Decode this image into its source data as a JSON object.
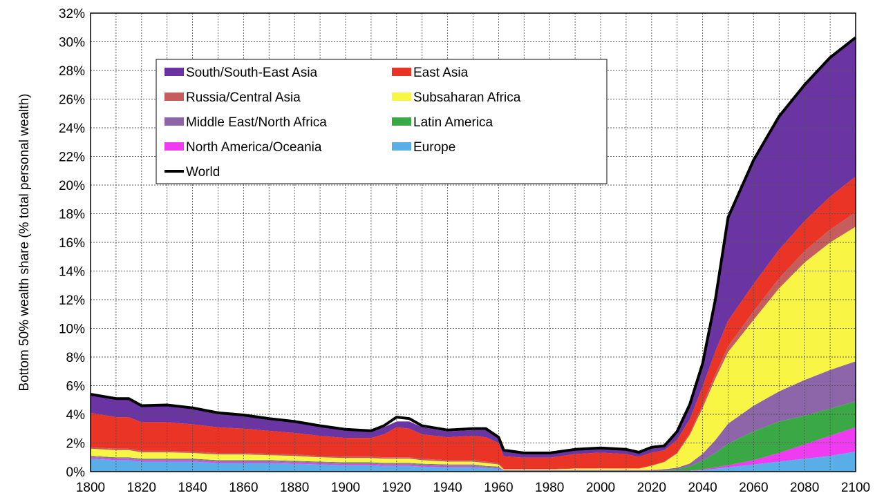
{
  "chart_data": {
    "type": "area",
    "title": "",
    "xlabel": "",
    "ylabel": "Bottom 50% wealth share (% total personal wealth)",
    "xlim": [
      1800,
      2100
    ],
    "ylim": [
      0,
      32
    ],
    "x_ticks": [
      "1800",
      "1820",
      "1840",
      "1860",
      "1880",
      "1900",
      "1920",
      "1940",
      "1960",
      "1980",
      "2000",
      "2020",
      "2040",
      "2060",
      "2080",
      "2100"
    ],
    "y_ticks": [
      "0%",
      "2%",
      "4%",
      "6%",
      "8%",
      "10%",
      "12%",
      "14%",
      "16%",
      "18%",
      "20%",
      "22%",
      "24%",
      "26%",
      "28%",
      "30%",
      "32%"
    ],
    "grid": true,
    "stacked": true,
    "legend_position": "top-left",
    "x": [
      1800,
      1810,
      1815,
      1820,
      1830,
      1840,
      1850,
      1860,
      1870,
      1880,
      1890,
      1900,
      1910,
      1915,
      1920,
      1925,
      1930,
      1940,
      1950,
      1955,
      1960,
      1962,
      1970,
      1980,
      1990,
      2000,
      2010,
      2015,
      2020,
      2025,
      2030,
      2035,
      2040,
      2045,
      2050,
      2060,
      2070,
      2080,
      2090,
      2100
    ],
    "series": [
      {
        "name": "Europe",
        "color": "#5aaee8",
        "values": [
          0.9,
          0.8,
          0.8,
          0.7,
          0.7,
          0.7,
          0.6,
          0.6,
          0.6,
          0.55,
          0.5,
          0.45,
          0.45,
          0.4,
          0.4,
          0.4,
          0.35,
          0.3,
          0.3,
          0.25,
          0.2,
          0.05,
          0.05,
          0.05,
          0.05,
          0.05,
          0.05,
          0.05,
          0.05,
          0.05,
          0.05,
          0.05,
          0.1,
          0.2,
          0.3,
          0.5,
          0.7,
          0.9,
          1.1,
          1.4
        ]
      },
      {
        "name": "North America/Oceania",
        "color": "#f03cf0",
        "values": [
          0.1,
          0.1,
          0.1,
          0.1,
          0.1,
          0.1,
          0.1,
          0.1,
          0.1,
          0.1,
          0.1,
          0.1,
          0.1,
          0.1,
          0.1,
          0.1,
          0.1,
          0.1,
          0.1,
          0.05,
          0.05,
          0.02,
          0.02,
          0.02,
          0.02,
          0.02,
          0.02,
          0.02,
          0.02,
          0.02,
          0.02,
          0.02,
          0.05,
          0.1,
          0.15,
          0.3,
          0.6,
          1.0,
          1.4,
          1.7
        ]
      },
      {
        "name": "Latin America",
        "color": "#3aa845",
        "values": [
          0.05,
          0.05,
          0.05,
          0.05,
          0.05,
          0.05,
          0.05,
          0.05,
          0.05,
          0.05,
          0.05,
          0.05,
          0.05,
          0.05,
          0.05,
          0.05,
          0.05,
          0.05,
          0.05,
          0.05,
          0.05,
          0.02,
          0.02,
          0.02,
          0.02,
          0.02,
          0.02,
          0.02,
          0.02,
          0.05,
          0.1,
          0.3,
          0.6,
          1.0,
          1.5,
          2.0,
          2.2,
          2.0,
          1.9,
          1.8
        ]
      },
      {
        "name": "Middle East/North Africa",
        "color": "#8c66a8",
        "values": [
          0.05,
          0.05,
          0.05,
          0.05,
          0.05,
          0.05,
          0.05,
          0.05,
          0.05,
          0.05,
          0.05,
          0.05,
          0.05,
          0.05,
          0.05,
          0.05,
          0.05,
          0.05,
          0.05,
          0.05,
          0.05,
          0.02,
          0.02,
          0.02,
          0.02,
          0.02,
          0.02,
          0.02,
          0.02,
          0.05,
          0.1,
          0.2,
          0.5,
          0.9,
          1.4,
          1.8,
          2.1,
          2.5,
          2.7,
          2.8
        ]
      },
      {
        "name": "Subsaharan Africa",
        "color": "#f8f544",
        "values": [
          0.5,
          0.5,
          0.5,
          0.45,
          0.45,
          0.4,
          0.4,
          0.4,
          0.35,
          0.35,
          0.3,
          0.3,
          0.3,
          0.3,
          0.3,
          0.3,
          0.25,
          0.2,
          0.2,
          0.2,
          0.15,
          0.05,
          0.05,
          0.05,
          0.1,
          0.1,
          0.1,
          0.1,
          0.3,
          0.5,
          1.0,
          2.0,
          3.2,
          4.3,
          5.0,
          6.0,
          7.2,
          8.2,
          8.9,
          9.4
        ]
      },
      {
        "name": "Russia/Central Asia",
        "color": "#c75c5c",
        "values": [
          0.1,
          0.1,
          0.1,
          0.1,
          0.1,
          0.1,
          0.1,
          0.1,
          0.1,
          0.1,
          0.1,
          0.1,
          0.1,
          0.1,
          0.1,
          0.1,
          0.1,
          0.1,
          0.1,
          0.1,
          0.1,
          0.02,
          0.02,
          0.02,
          0.02,
          0.02,
          0.02,
          0.02,
          0.02,
          0.02,
          0.05,
          0.1,
          0.2,
          0.3,
          0.4,
          0.6,
          0.7,
          0.8,
          0.9,
          1.0
        ]
      },
      {
        "name": "East Asia",
        "color": "#ea3425",
        "values": [
          2.4,
          2.2,
          2.2,
          2.0,
          2.0,
          1.9,
          1.8,
          1.7,
          1.6,
          1.5,
          1.4,
          1.3,
          1.3,
          1.6,
          2.1,
          2.0,
          1.7,
          1.6,
          1.7,
          1.7,
          1.4,
          0.9,
          0.8,
          0.8,
          1.0,
          1.1,
          1.0,
          0.8,
          0.9,
          0.8,
          0.9,
          1.0,
          1.3,
          1.6,
          1.8,
          1.9,
          2.0,
          2.1,
          2.3,
          2.5
        ]
      },
      {
        "name": "South/South-East Asia",
        "color": "#6a34a2",
        "values": [
          1.3,
          1.3,
          1.3,
          1.1,
          1.2,
          1.1,
          0.9,
          0.9,
          0.8,
          0.8,
          0.7,
          0.6,
          0.4,
          0.5,
          0.4,
          0.5,
          0.5,
          0.4,
          0.4,
          0.5,
          0.4,
          0.35,
          0.3,
          0.3,
          0.3,
          0.3,
          0.3,
          0.3,
          0.3,
          0.3,
          0.6,
          1.0,
          1.6,
          3.6,
          7.2,
          8.7,
          9.3,
          9.5,
          9.6,
          9.7
        ]
      }
    ],
    "world": {
      "name": "World",
      "color": "#000000",
      "values": [
        5.4,
        5.1,
        5.1,
        4.6,
        4.65,
        4.45,
        4.1,
        3.95,
        3.7,
        3.5,
        3.2,
        2.95,
        2.85,
        3.2,
        3.8,
        3.7,
        3.2,
        2.9,
        3.0,
        3.0,
        2.4,
        1.5,
        1.3,
        1.3,
        1.55,
        1.65,
        1.55,
        1.35,
        1.7,
        1.8,
        2.8,
        4.7,
        7.55,
        12.0,
        17.75,
        21.75,
        24.8,
        27.0,
        28.9,
        30.3
      ]
    },
    "legend": [
      {
        "label": "South/South-East Asia",
        "color": "#6a34a2"
      },
      {
        "label": "East Asia",
        "color": "#ea3425"
      },
      {
        "label": "Russia/Central Asia",
        "color": "#c75c5c"
      },
      {
        "label": "Subsaharan Africa",
        "color": "#f8f544"
      },
      {
        "label": "Middle East/North Africa",
        "color": "#8c66a8"
      },
      {
        "label": "Latin America",
        "color": "#3aa845"
      },
      {
        "label": "North America/Oceania",
        "color": "#f03cf0"
      },
      {
        "label": "Europe",
        "color": "#5aaee8"
      },
      {
        "label": "World",
        "color": "#000000",
        "line": true
      }
    ]
  }
}
